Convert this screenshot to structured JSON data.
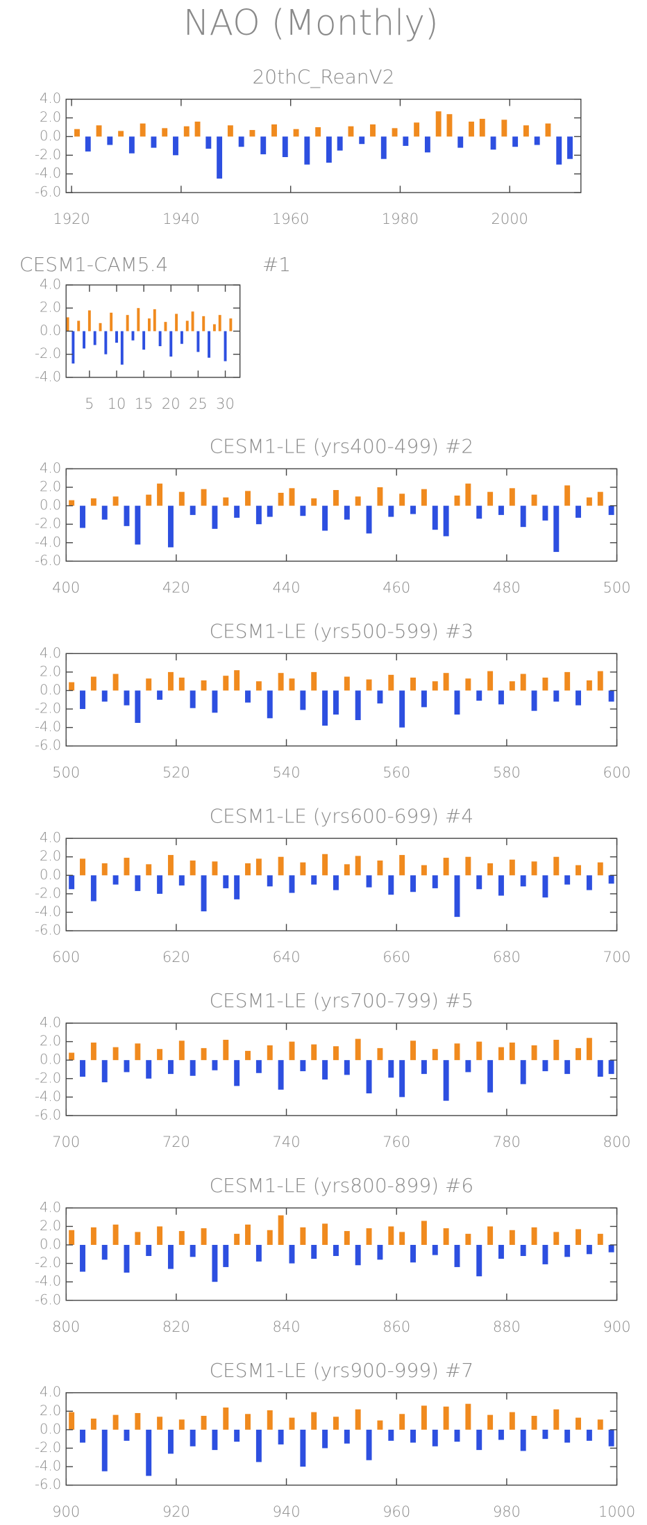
{
  "page_title": "NAO (Monthly)",
  "chart_data": [
    {
      "type": "bar",
      "title": "20thC_ReanV2",
      "x": [
        1921,
        1923,
        1925,
        1927,
        1929,
        1931,
        1933,
        1935,
        1937,
        1939,
        1941,
        1943,
        1945,
        1947,
        1949,
        1951,
        1953,
        1955,
        1957,
        1959,
        1961,
        1963,
        1965,
        1967,
        1969,
        1971,
        1973,
        1975,
        1977,
        1979,
        1981,
        1983,
        1985,
        1987,
        1989,
        1991,
        1993,
        1995,
        1997,
        1999,
        2001,
        2003,
        2005,
        2007,
        2009,
        2011
      ],
      "values": [
        0.8,
        -1.6,
        1.2,
        -0.9,
        0.6,
        -1.8,
        1.4,
        -1.2,
        0.9,
        -2.0,
        1.1,
        1.6,
        -1.3,
        -4.5,
        1.2,
        -1.1,
        0.7,
        -1.9,
        1.3,
        -2.2,
        0.8,
        -3.0,
        1.0,
        -2.8,
        -1.5,
        1.1,
        -0.8,
        1.3,
        -2.4,
        0.9,
        -1.0,
        1.5,
        -1.7,
        2.7,
        2.4,
        -1.2,
        1.6,
        1.9,
        -1.4,
        1.8,
        -1.1,
        1.2,
        -0.9,
        1.4,
        -3.0,
        -2.4
      ],
      "xlim": [
        1919,
        2013
      ],
      "xticks": [
        1920,
        1940,
        1960,
        1980,
        2000
      ],
      "ylim": [
        -6,
        4
      ],
      "yticks": [
        {
          "value": -6,
          "label": "-6.0"
        },
        {
          "value": -4,
          "label": "-4.0"
        },
        {
          "value": -2,
          "label": "-2.0"
        },
        {
          "value": 0,
          "label": "0.0"
        },
        {
          "value": 2,
          "label": "2.0"
        },
        {
          "value": 4,
          "label": "4.0"
        }
      ],
      "pos_color": "#f08a1e",
      "neg_color": "#2d4fe0"
    },
    {
      "type": "bar",
      "title": "CESM1-CAM5.4",
      "subtitle": "#1",
      "x": [
        1,
        2,
        3,
        4,
        5,
        6,
        7,
        8,
        9,
        10,
        11,
        12,
        13,
        14,
        15,
        16,
        17,
        18,
        19,
        20,
        21,
        22,
        23,
        24,
        25,
        26,
        27,
        28,
        29,
        30,
        31
      ],
      "values": [
        1.2,
        -2.8,
        0.9,
        -1.5,
        1.8,
        -1.2,
        0.7,
        -2.0,
        1.6,
        -1.0,
        -2.9,
        1.4,
        -0.8,
        2.0,
        -1.6,
        1.1,
        1.9,
        -1.3,
        0.8,
        -2.2,
        1.5,
        -1.1,
        0.9,
        1.7,
        -1.8,
        1.3,
        -2.3,
        0.6,
        1.4,
        -2.6,
        1.1
      ],
      "xlim": [
        0.7,
        32.7
      ],
      "xticks": [
        5,
        10,
        15,
        20,
        25,
        30
      ],
      "ylim": [
        -4,
        4
      ],
      "yticks": [
        {
          "value": -4,
          "label": "-4.0"
        },
        {
          "value": -2,
          "label": "-2.0"
        },
        {
          "value": 0,
          "label": "0.0"
        },
        {
          "value": 2,
          "label": "2.0"
        },
        {
          "value": 4,
          "label": "4.0"
        }
      ],
      "pos_color": "#f08a1e",
      "neg_color": "#2d4fe0"
    },
    {
      "type": "bar",
      "title": "CESM1-LE (yrs400-499) #2",
      "x": [
        401,
        403,
        405,
        407,
        409,
        411,
        413,
        415,
        417,
        419,
        421,
        423,
        425,
        427,
        429,
        431,
        433,
        435,
        437,
        439,
        441,
        443,
        445,
        447,
        449,
        451,
        453,
        455,
        457,
        459,
        461,
        463,
        465,
        467,
        469,
        471,
        473,
        475,
        477,
        479,
        481,
        483,
        485,
        487,
        489,
        491,
        493,
        495,
        497,
        499
      ],
      "values": [
        0.6,
        -2.4,
        0.8,
        -1.5,
        1.0,
        -2.2,
        -4.2,
        1.2,
        2.4,
        -4.5,
        1.5,
        -1.0,
        1.8,
        -2.5,
        0.9,
        -1.3,
        1.6,
        -2.0,
        -1.2,
        1.4,
        1.9,
        -1.1,
        0.8,
        -2.7,
        1.7,
        -1.5,
        1.0,
        -3.0,
        2.0,
        -1.2,
        1.3,
        -0.9,
        1.8,
        -2.6,
        -3.3,
        1.1,
        2.4,
        -1.4,
        1.5,
        -1.0,
        1.9,
        -2.3,
        1.2,
        -1.6,
        -5.0,
        2.2,
        -1.3,
        0.9,
        1.5,
        -1.0
      ],
      "xlim": [
        400,
        500
      ],
      "xticks": [
        400,
        420,
        440,
        460,
        480,
        500
      ],
      "ylim": [
        -6,
        4
      ],
      "yticks": [
        {
          "value": -6,
          "label": "-6.0"
        },
        {
          "value": -4,
          "label": "-4.0"
        },
        {
          "value": -2,
          "label": "-2.0"
        },
        {
          "value": 0,
          "label": "0.0"
        },
        {
          "value": 2,
          "label": "2.0"
        },
        {
          "value": 4,
          "label": "4.0"
        }
      ],
      "pos_color": "#f08a1e",
      "neg_color": "#2d4fe0"
    },
    {
      "type": "bar",
      "title": "CESM1-LE (yrs500-599) #3",
      "x": [
        501,
        503,
        505,
        507,
        509,
        511,
        513,
        515,
        517,
        519,
        521,
        523,
        525,
        527,
        529,
        531,
        533,
        535,
        537,
        539,
        541,
        543,
        545,
        547,
        549,
        551,
        553,
        555,
        557,
        559,
        561,
        563,
        565,
        567,
        569,
        571,
        573,
        575,
        577,
        579,
        581,
        583,
        585,
        587,
        589,
        591,
        593,
        595,
        597,
        599
      ],
      "values": [
        0.9,
        -2.0,
        1.5,
        -1.2,
        1.8,
        -1.6,
        -3.5,
        1.3,
        -1.0,
        2.0,
        1.4,
        -1.9,
        1.1,
        -2.4,
        1.6,
        2.2,
        -1.3,
        1.0,
        -3.0,
        1.9,
        1.3,
        -2.1,
        2.0,
        -3.8,
        -2.6,
        1.5,
        -3.2,
        1.2,
        -1.4,
        1.7,
        -4.0,
        1.4,
        -1.8,
        1.0,
        1.9,
        -2.6,
        1.3,
        -1.1,
        2.1,
        -1.5,
        1.0,
        1.8,
        -2.2,
        1.4,
        -1.2,
        2.0,
        -1.6,
        1.1,
        2.1,
        -1.2
      ],
      "xlim": [
        500,
        600
      ],
      "xticks": [
        500,
        520,
        540,
        560,
        580,
        600
      ],
      "ylim": [
        -6,
        4
      ],
      "yticks": [
        {
          "value": -6,
          "label": "-6.0"
        },
        {
          "value": -4,
          "label": "-4.0"
        },
        {
          "value": -2,
          "label": "-2.0"
        },
        {
          "value": 0,
          "label": "0.0"
        },
        {
          "value": 2,
          "label": "2.0"
        },
        {
          "value": 4,
          "label": "4.0"
        }
      ],
      "pos_color": "#f08a1e",
      "neg_color": "#2d4fe0"
    },
    {
      "type": "bar",
      "title": "CESM1-LE (yrs600-699) #4",
      "x": [
        601,
        603,
        605,
        607,
        609,
        611,
        613,
        615,
        617,
        619,
        621,
        623,
        625,
        627,
        629,
        631,
        633,
        635,
        637,
        639,
        641,
        643,
        645,
        647,
        649,
        651,
        653,
        655,
        657,
        659,
        661,
        663,
        665,
        667,
        669,
        671,
        673,
        675,
        677,
        679,
        681,
        683,
        685,
        687,
        689,
        691,
        693,
        695,
        697,
        699
      ],
      "values": [
        -1.5,
        1.8,
        -2.8,
        1.3,
        -1.0,
        1.9,
        -1.7,
        1.2,
        -2.0,
        2.2,
        -1.1,
        1.6,
        -3.9,
        1.5,
        -1.4,
        -2.6,
        1.3,
        1.8,
        -1.2,
        2.0,
        -1.9,
        1.4,
        -1.0,
        2.3,
        -1.6,
        1.2,
        2.1,
        -1.3,
        1.6,
        -2.1,
        2.2,
        -1.8,
        1.1,
        -1.4,
        1.9,
        -4.5,
        2.0,
        -1.5,
        1.3,
        -2.2,
        1.7,
        -1.2,
        1.5,
        -2.4,
        2.0,
        -1.0,
        1.1,
        -1.6,
        1.4,
        -0.9
      ],
      "xlim": [
        600,
        700
      ],
      "xticks": [
        600,
        620,
        640,
        660,
        680,
        700
      ],
      "ylim": [
        -6,
        4
      ],
      "yticks": [
        {
          "value": -6,
          "label": "-6.0"
        },
        {
          "value": -4,
          "label": "-4.0"
        },
        {
          "value": -2,
          "label": "-2.0"
        },
        {
          "value": 0,
          "label": "0.0"
        },
        {
          "value": 2,
          "label": "2.0"
        },
        {
          "value": 4,
          "label": "4.0"
        }
      ],
      "pos_color": "#f08a1e",
      "neg_color": "#2d4fe0"
    },
    {
      "type": "bar",
      "title": "CESM1-LE (yrs700-799) #5",
      "x": [
        701,
        703,
        705,
        707,
        709,
        711,
        713,
        715,
        717,
        719,
        721,
        723,
        725,
        727,
        729,
        731,
        733,
        735,
        737,
        739,
        741,
        743,
        745,
        747,
        749,
        751,
        753,
        755,
        757,
        759,
        761,
        763,
        765,
        767,
        769,
        771,
        773,
        775,
        777,
        779,
        781,
        783,
        785,
        787,
        789,
        791,
        793,
        795,
        797,
        799
      ],
      "values": [
        0.8,
        -1.8,
        1.9,
        -2.4,
        1.4,
        -1.3,
        1.8,
        -2.0,
        1.2,
        -1.5,
        2.1,
        -1.7,
        1.3,
        -1.1,
        2.2,
        -2.8,
        1.0,
        -1.4,
        1.6,
        -3.2,
        2.0,
        -1.2,
        1.7,
        -2.1,
        1.5,
        -1.6,
        2.3,
        -3.6,
        1.3,
        -1.9,
        -4.0,
        2.1,
        -1.5,
        1.2,
        -4.4,
        1.8,
        -1.3,
        2.0,
        -3.5,
        1.4,
        1.9,
        -2.6,
        1.6,
        -1.2,
        2.2,
        -1.5,
        1.3,
        2.4,
        -1.8,
        -1.5
      ],
      "xlim": [
        700,
        800
      ],
      "xticks": [
        700,
        720,
        740,
        760,
        780,
        800
      ],
      "ylim": [
        -6,
        4
      ],
      "yticks": [
        {
          "value": -6,
          "label": "-6.0"
        },
        {
          "value": -4,
          "label": "-4.0"
        },
        {
          "value": -2,
          "label": "-2.0"
        },
        {
          "value": 0,
          "label": "0.0"
        },
        {
          "value": 2,
          "label": "2.0"
        },
        {
          "value": 4,
          "label": "4.0"
        }
      ],
      "pos_color": "#f08a1e",
      "neg_color": "#2d4fe0"
    },
    {
      "type": "bar",
      "title": "CESM1-LE (yrs800-899) #6",
      "x": [
        801,
        803,
        805,
        807,
        809,
        811,
        813,
        815,
        817,
        819,
        821,
        823,
        825,
        827,
        829,
        831,
        833,
        835,
        837,
        839,
        841,
        843,
        845,
        847,
        849,
        851,
        853,
        855,
        857,
        859,
        861,
        863,
        865,
        867,
        869,
        871,
        873,
        875,
        877,
        879,
        881,
        883,
        885,
        887,
        889,
        891,
        893,
        895,
        897,
        899
      ],
      "values": [
        1.6,
        -2.9,
        1.9,
        -1.6,
        2.2,
        -3.0,
        1.4,
        -1.2,
        2.0,
        -2.6,
        1.5,
        -1.3,
        1.8,
        -4.0,
        -2.4,
        1.2,
        2.2,
        -1.8,
        1.6,
        3.2,
        -2.0,
        1.9,
        -1.5,
        2.3,
        -1.2,
        1.5,
        -2.2,
        1.8,
        -1.6,
        2.0,
        1.4,
        -1.9,
        2.6,
        -1.1,
        1.8,
        -2.4,
        1.2,
        -3.4,
        2.0,
        -1.5,
        1.6,
        -1.2,
        1.9,
        -2.1,
        1.4,
        -1.3,
        1.7,
        -1.0,
        1.2,
        -0.8
      ],
      "xlim": [
        800,
        900
      ],
      "xticks": [
        800,
        820,
        840,
        860,
        880,
        900
      ],
      "ylim": [
        -6,
        4
      ],
      "yticks": [
        {
          "value": -6,
          "label": "-6.0"
        },
        {
          "value": -4,
          "label": "-4.0"
        },
        {
          "value": -2,
          "label": "-2.0"
        },
        {
          "value": 0,
          "label": "0.0"
        },
        {
          "value": 2,
          "label": "2.0"
        },
        {
          "value": 4,
          "label": "4.0"
        }
      ],
      "pos_color": "#f08a1e",
      "neg_color": "#2d4fe0"
    },
    {
      "type": "bar",
      "title": "CESM1-LE (yrs900-999) #7",
      "x": [
        901,
        903,
        905,
        907,
        909,
        911,
        913,
        915,
        917,
        919,
        921,
        923,
        925,
        927,
        929,
        931,
        933,
        935,
        937,
        939,
        941,
        943,
        945,
        947,
        949,
        951,
        953,
        955,
        957,
        959,
        961,
        963,
        965,
        967,
        969,
        971,
        973,
        975,
        977,
        979,
        981,
        983,
        985,
        987,
        989,
        991,
        993,
        995,
        997,
        999
      ],
      "values": [
        1.9,
        -1.4,
        1.2,
        -4.5,
        1.6,
        -1.2,
        1.8,
        -5.0,
        1.4,
        -2.6,
        1.1,
        -1.8,
        1.5,
        -2.2,
        2.4,
        -1.3,
        1.7,
        -3.5,
        2.1,
        -1.6,
        1.3,
        -4.0,
        1.9,
        -2.0,
        1.4,
        -1.5,
        2.2,
        -3.3,
        1.0,
        -1.2,
        1.7,
        -1.4,
        2.6,
        -1.8,
        2.5,
        -1.3,
        2.8,
        -2.2,
        1.6,
        -1.1,
        1.9,
        -2.3,
        1.5,
        -1.0,
        2.2,
        -1.4,
        1.3,
        -1.2,
        1.1,
        -1.8
      ],
      "xlim": [
        900,
        1000
      ],
      "xticks": [
        900,
        920,
        940,
        960,
        980,
        1000
      ],
      "ylim": [
        -6,
        4
      ],
      "yticks": [
        {
          "value": -6,
          "label": "-6.0"
        },
        {
          "value": -4,
          "label": "-4.0"
        },
        {
          "value": -2,
          "label": "-2.0"
        },
        {
          "value": 0,
          "label": "0.0"
        },
        {
          "value": 2,
          "label": "2.0"
        },
        {
          "value": 4,
          "label": "4.0"
        }
      ],
      "pos_color": "#f08a1e",
      "neg_color": "#2d4fe0"
    }
  ]
}
